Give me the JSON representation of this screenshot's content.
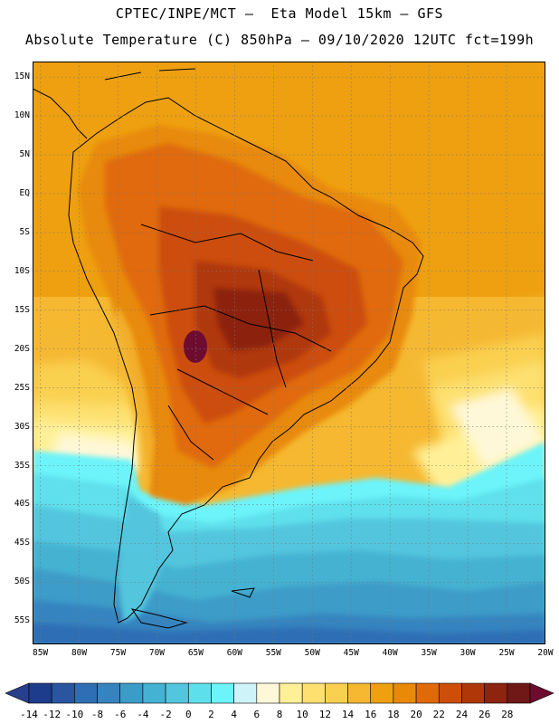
{
  "header": {
    "line1": "CPTEC/INPE/MCT –  Eta Model 15km – GFS",
    "line2": "Absolute Temperature (C) 850hPa – 09/10/2020 12UTC fct=199h"
  },
  "map": {
    "lat_ticks": [
      "15N",
      "10N",
      "5N",
      "EQ",
      "5S",
      "10S",
      "15S",
      "20S",
      "25S",
      "30S",
      "35S",
      "40S",
      "45S",
      "50S",
      "55S"
    ],
    "lon_ticks": [
      "85W",
      "80W",
      "75W",
      "70W",
      "65W",
      "60W",
      "55W",
      "50W",
      "45W",
      "40W",
      "35W",
      "30W",
      "25W",
      "20W"
    ],
    "lat_range": [
      -58,
      17
    ],
    "lon_range": [
      -86,
      -20
    ],
    "gridlines": "dotted"
  },
  "legend": {
    "labels": [
      "-14",
      "-12",
      "-10",
      "-8",
      "-6",
      "-4",
      "-2",
      "0",
      "2",
      "4",
      "6",
      "8",
      "10",
      "12",
      "14",
      "16",
      "18",
      "20",
      "22",
      "24",
      "26",
      "28"
    ],
    "colors": [
      "#1e3c8c",
      "#2a56a0",
      "#2f6eb4",
      "#3584c0",
      "#3c9cc8",
      "#44b2d2",
      "#52c6de",
      "#5ee0ec",
      "#6cf4fa",
      "#cef4fa",
      "#fff8d8",
      "#fff098",
      "#fde070",
      "#fad050",
      "#f5b830",
      "#eea010",
      "#e88a08",
      "#e06a08",
      "#cc4e08",
      "#b03808",
      "#8c2410",
      "#701818"
    ],
    "under_color": "#27408e",
    "over_color": "#6e0c30"
  }
}
